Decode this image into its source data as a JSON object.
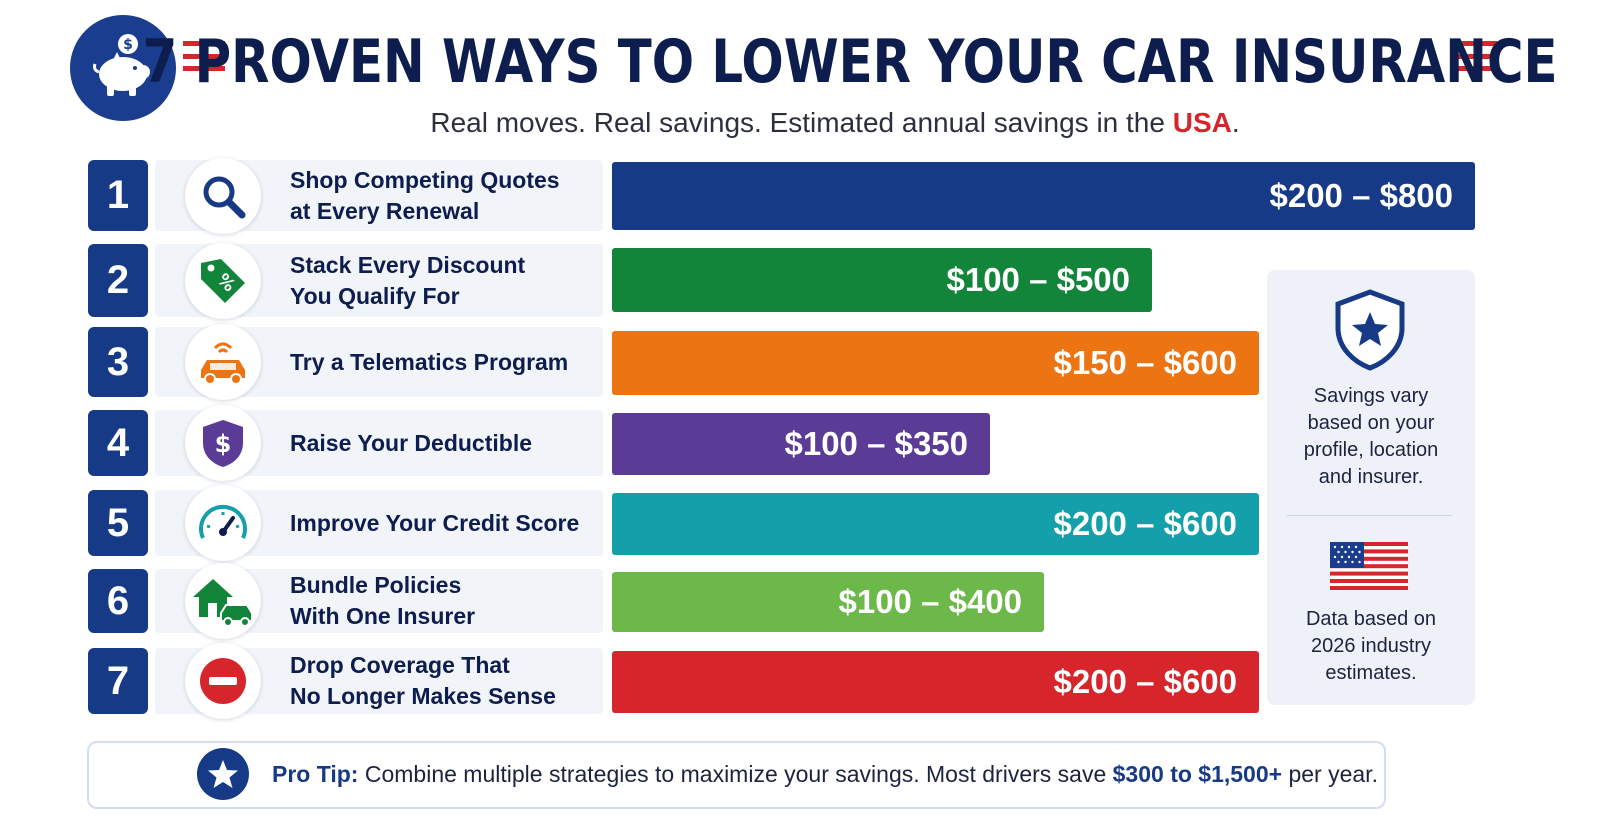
{
  "header": {
    "title": "7 PROVEN WAYS TO LOWER YOUR CAR INSURANCE",
    "subtitle_main": "Real moves. Real savings. Estimated annual savings in the ",
    "subtitle_highlight": "USA",
    "subtitle_end": "."
  },
  "chart_data": {
    "type": "bar",
    "title": "7 PROVEN WAYS TO LOWER YOUR CAR INSURANCE",
    "subtitle": "Real moves. Real savings. Estimated annual savings in the USA.",
    "orientation": "horizontal",
    "unit": "USD per year",
    "categories": [
      "Shop Competing Quotes at Every Renewal",
      "Stack Every Discount You Qualify For",
      "Try a Telematics Program",
      "Raise Your Deductible",
      "Improve Your Credit Score",
      "Bundle Policies With One Insurer",
      "Drop Coverage That No Longer Makes Sense"
    ],
    "series": [
      {
        "values_low": [
          200,
          100,
          150,
          100,
          200,
          100,
          200
        ],
        "values_high": [
          800,
          500,
          600,
          350,
          600,
          400,
          600
        ]
      }
    ],
    "items": [
      {
        "number": "1",
        "label_lines": [
          "Shop Competing Quotes",
          "at Every Renewal"
        ],
        "icon": "magnifier-icon",
        "range_label": "$200 – $800",
        "low": 200,
        "high": 800,
        "color": "#163a86"
      },
      {
        "number": "2",
        "label_lines": [
          "Stack Every Discount",
          "You Qualify For"
        ],
        "icon": "discount-tag-icon",
        "range_label": "$100 – $500",
        "low": 100,
        "high": 500,
        "color": "#13853a"
      },
      {
        "number": "3",
        "label_lines": [
          "Try a Telematics Program"
        ],
        "icon": "connected-car-icon",
        "range_label": "$150 – $600",
        "low": 150,
        "high": 600,
        "color": "#ec7412"
      },
      {
        "number": "4",
        "label_lines": [
          "Raise Your Deductible"
        ],
        "icon": "dollar-shield-icon",
        "range_label": "$100 – $350",
        "low": 100,
        "high": 350,
        "color": "#5a3b95"
      },
      {
        "number": "5",
        "label_lines": [
          "Improve Your Credit Score"
        ],
        "icon": "speedometer-icon",
        "range_label": "$200 – $600",
        "low": 200,
        "high": 600,
        "color": "#13a0ab"
      },
      {
        "number": "6",
        "label_lines": [
          "Bundle Policies",
          "With One Insurer"
        ],
        "icon": "house-car-icon",
        "range_label": "$100 – $400",
        "low": 100,
        "high": 400,
        "color": "#6db84a"
      },
      {
        "number": "7",
        "label_lines": [
          "Drop Coverage That",
          "No Longer Makes Sense"
        ],
        "icon": "no-entry-icon",
        "range_label": "$200 – $600",
        "low": 200,
        "high": 600,
        "color": "#d7262b"
      }
    ],
    "grid": false,
    "legend": "none"
  },
  "side_panel": {
    "shield_icon": "star-shield-icon",
    "note_lines": [
      "Savings vary",
      "based on your",
      "profile, location",
      "and insurer."
    ],
    "flag_icon": "us-flag-icon",
    "source_lines": [
      "Data based on",
      "2026 industry",
      "estimates."
    ]
  },
  "pro_tip": {
    "icon": "star-icon",
    "label": "Pro Tip:",
    "text": " Combine multiple strategies to maximize your savings.  Most drivers save ",
    "highlight": "$300 to $1,500+",
    "suffix": " per year."
  },
  "colors": {
    "navy": "#163a86",
    "title": "#0c1d4e",
    "accent_red": "#d7262b"
  }
}
